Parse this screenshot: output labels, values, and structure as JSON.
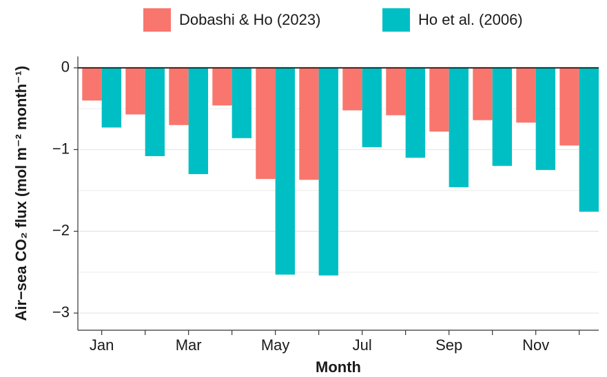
{
  "chart_data": {
    "type": "bar",
    "x_label": "Month",
    "y_label": "Air−sea CO₂ flux (mol m⁻² month⁻¹)",
    "categories": [
      "Jan",
      null,
      "Mar",
      null,
      "May",
      null,
      "Jul",
      null,
      "Sep",
      null,
      "Nov",
      null
    ],
    "series": [
      {
        "name": "Dobashi & Ho (2023)",
        "color": "#f8766d",
        "values": [
          -0.4,
          -0.57,
          -0.7,
          -0.46,
          -1.36,
          -1.37,
          -0.52,
          -0.58,
          -0.78,
          -0.64,
          -0.67,
          -0.95
        ]
      },
      {
        "name": "Ho et al. (2006)",
        "color": "#00bfc4",
        "values": [
          -0.73,
          -1.08,
          -1.3,
          -0.86,
          -2.53,
          -2.54,
          -0.97,
          -1.1,
          -1.46,
          -1.2,
          -1.25,
          -1.76
        ]
      }
    ],
    "ylim": [
      -3.21,
      0.14
    ],
    "yticks": [
      0,
      {
        "value": -1,
        "label": "−1"
      },
      {
        "value": -2,
        "label": "−2"
      },
      {
        "value": -3,
        "label": "−3"
      }
    ],
    "minor_yticks": [
      -0.5,
      -1.5,
      -2.5
    ],
    "grid": true,
    "legend_position": "top"
  }
}
